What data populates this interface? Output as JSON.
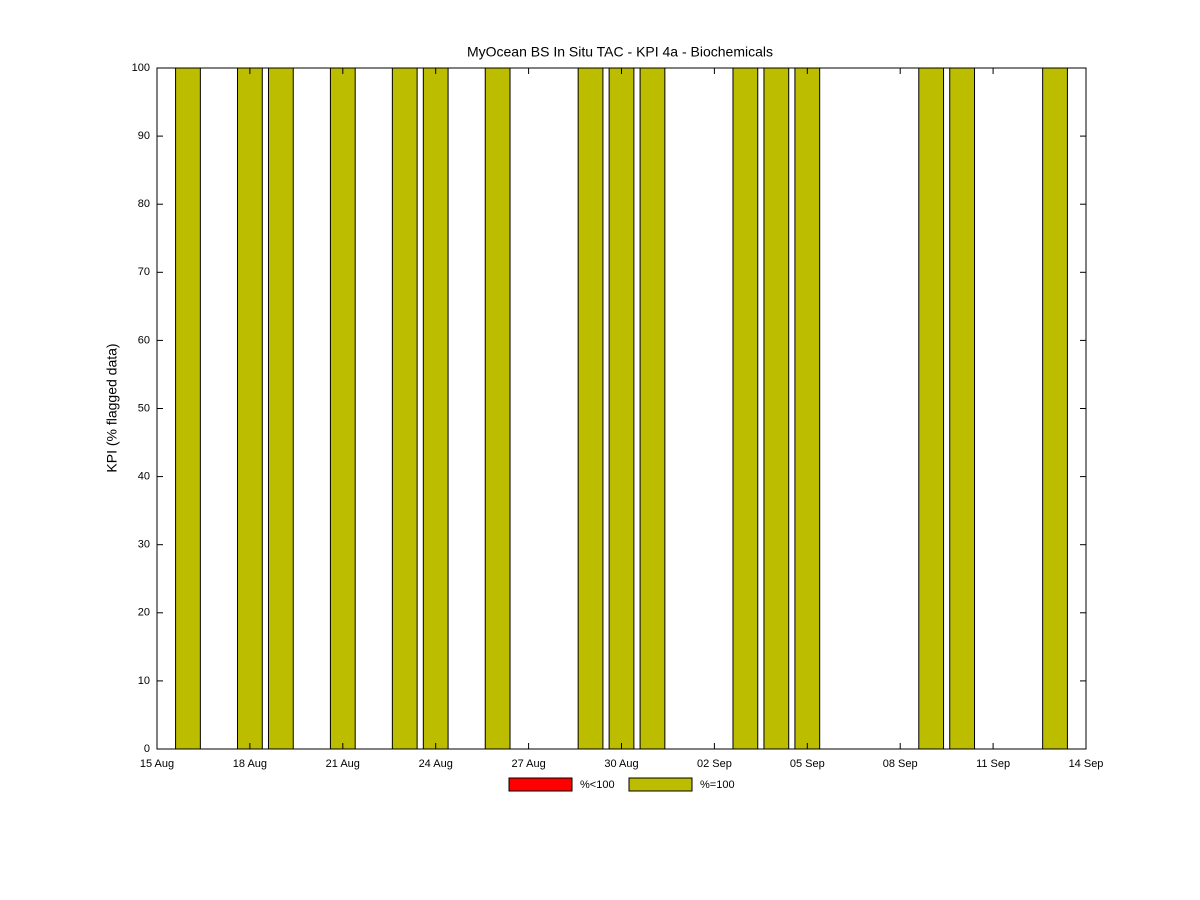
{
  "chart_data": {
    "type": "bar",
    "title": "MyOcean  BS In Situ TAC - KPI 4a - Biochemicals",
    "y_label": "KPI (% flagged data)",
    "x": [
      "16 Aug",
      "18 Aug",
      "19 Aug",
      "21 Aug",
      "23 Aug",
      "24 Aug",
      "26 Aug",
      "29 Aug",
      "30 Aug",
      "31 Aug",
      "03 Sep",
      "04 Sep",
      "05 Sep",
      "09 Sep",
      "10 Sep",
      "13 Sep"
    ],
    "series": [
      {
        "name": "%<100",
        "color": "#ff0000",
        "values": [
          null,
          null,
          null,
          null,
          null,
          null,
          null,
          null,
          null,
          null,
          null,
          null,
          null,
          null,
          null,
          null
        ]
      },
      {
        "name": "%=100",
        "color": "#bdbd00",
        "values": [
          100,
          100,
          100,
          100,
          100,
          100,
          100,
          100,
          100,
          100,
          100,
          100,
          100,
          100,
          100,
          100
        ]
      }
    ],
    "xlim": [
      "15 Aug",
      "14 Sep"
    ],
    "xticks": [
      "15 Aug",
      "18 Aug",
      "21 Aug",
      "24 Aug",
      "27 Aug",
      "30 Aug",
      "02 Sep",
      "05 Sep",
      "08 Sep",
      "11 Sep",
      "14 Sep"
    ],
    "ylim": [
      0,
      100
    ],
    "yticks": [
      0,
      10,
      20,
      30,
      40,
      50,
      60,
      70,
      80,
      90,
      100
    ],
    "legend": "bottom"
  }
}
